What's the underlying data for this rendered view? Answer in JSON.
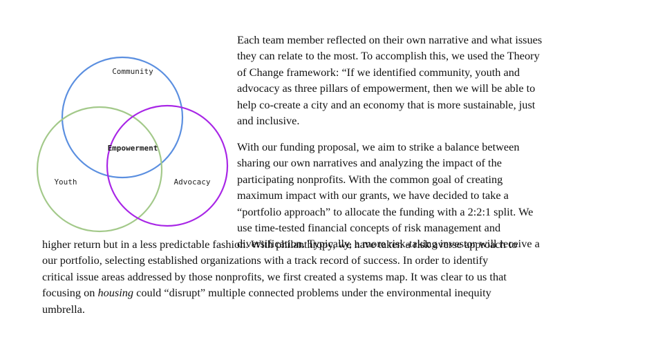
{
  "diagram": {
    "labels": {
      "community": "Community",
      "youth": "Youth",
      "advocacy": "Advocacy",
      "center": "Empowerment"
    },
    "colors": {
      "community": "#5b8fe0",
      "youth": "#a3c98a",
      "advocacy": "#a826e6"
    }
  },
  "text": {
    "p1": [
      "Each team member reflected on their own narrative and what issues",
      "they can relate to the most. To accomplish this, we used the Theory",
      "of Change framework: “If we identified community, youth and",
      "advocacy as three pillars of empowerment, then we will be able to",
      "help co-create a city and an economy that is more sustainable, just",
      "and inclusive."
    ],
    "p2": [
      "With our funding proposal, we aim to strike a balance between",
      "sharing our own narratives and analyzing the impact of the",
      "participating nonprofits. With the common goal of creating",
      "maximum impact with our grants, we have decided to take a",
      "“portfolio approach” to allocate the funding with a 2:2:1 split. We",
      "use time-tested financial concepts of risk management and",
      "diversification. Typically, a more risk-taking investor will receive a"
    ],
    "p3": [
      "higher return but in a less predictable fashion. With philanthropy, we have taken a risk averse approach to",
      "our portfolio, selecting established organizations with a track record of success. In order to identify",
      "critical issue areas addressed by those nonprofits, we first created a systems map. It was clear to us that",
      "focusing on ",
      "housing",
      " could “disrupt” multiple connected problems under the environmental inequity",
      "umbrella."
    ]
  }
}
